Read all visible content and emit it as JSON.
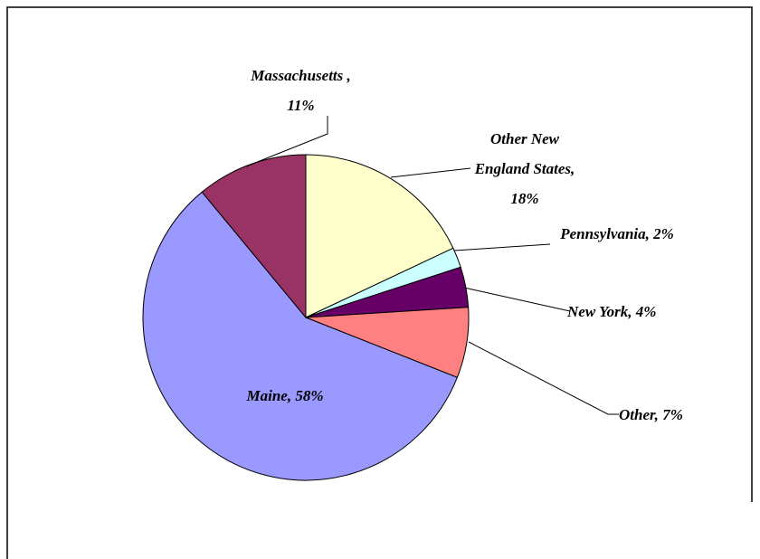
{
  "chart_data": {
    "type": "pie",
    "categories": [
      "Other New England States,",
      "Pennsylvania,",
      "New York,",
      "Other,",
      "Maine,",
      "Massachusetts ,"
    ],
    "values": [
      18,
      2,
      4,
      7,
      58,
      11
    ],
    "value_labels": [
      "18%",
      "2%",
      "4%",
      "7%",
      "58%",
      "11%"
    ],
    "colors": [
      "#ffffcc",
      "#ccffff",
      "#660066",
      "#ff8080",
      "#9999ff",
      "#993366"
    ]
  }
}
